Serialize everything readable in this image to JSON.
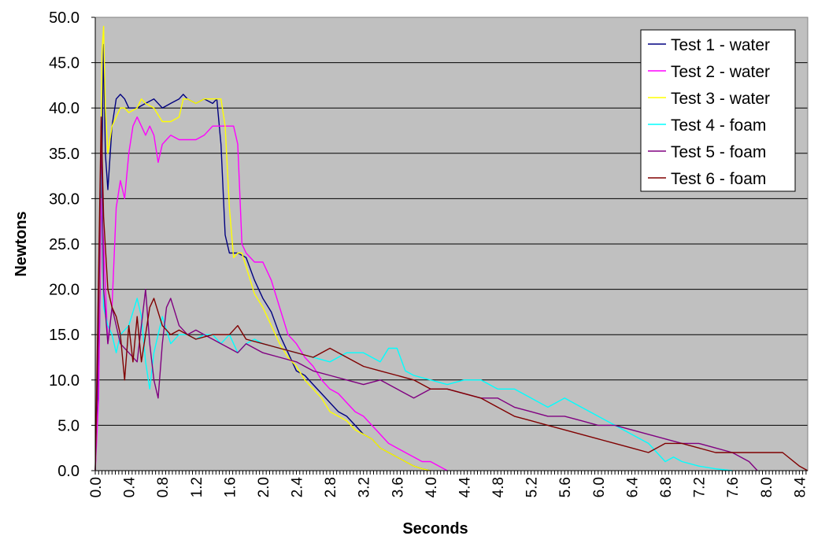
{
  "chart_data": {
    "type": "line",
    "title": "",
    "xlabel": "Seconds",
    "ylabel": "Newtons",
    "xlim": [
      0,
      8.5
    ],
    "ylim": [
      0,
      50
    ],
    "x_ticks": [
      "0.0",
      "0.4",
      "0.8",
      "1.2",
      "1.6",
      "2.0",
      "2.4",
      "2.8",
      "3.2",
      "3.6",
      "4.0",
      "4.4",
      "4.8",
      "5.2",
      "5.6",
      "6.0",
      "6.4",
      "6.8",
      "7.2",
      "7.6",
      "8.0",
      "8.4"
    ],
    "y_ticks": [
      "0.0",
      "5.0",
      "10.0",
      "15.0",
      "20.0",
      "25.0",
      "30.0",
      "35.0",
      "40.0",
      "45.0",
      "50.0"
    ],
    "grid": "horizontal",
    "plot_background": "#c0c0c0",
    "legend_position": "top-right",
    "series": [
      {
        "name": "Test 1 - water",
        "color": "#000080",
        "x": [
          0,
          0.05,
          0.1,
          0.12,
          0.15,
          0.2,
          0.25,
          0.3,
          0.35,
          0.4,
          0.5,
          0.6,
          0.7,
          0.8,
          0.9,
          1.0,
          1.05,
          1.1,
          1.2,
          1.3,
          1.4,
          1.45,
          1.5,
          1.55,
          1.6,
          1.65,
          1.7,
          1.8,
          1.9,
          2.0,
          2.1,
          2.2,
          2.3,
          2.4,
          2.5,
          2.6,
          2.7,
          2.8,
          2.9,
          3.0,
          3.1,
          3.2,
          3.3,
          3.4,
          3.5,
          3.6,
          3.7,
          3.8,
          3.9,
          4.0
        ],
        "y": [
          0,
          15,
          47,
          35,
          31,
          38,
          41,
          41.5,
          41,
          40,
          40,
          40.5,
          41,
          40,
          40.5,
          41,
          41.5,
          41,
          40.5,
          41,
          40.5,
          41,
          36,
          26,
          24,
          24,
          24,
          23.5,
          21,
          19,
          17.5,
          15,
          13,
          11,
          10.5,
          9.5,
          8.5,
          7.5,
          6.5,
          6,
          5,
          4,
          3.5,
          2.5,
          2,
          1.5,
          1,
          0.5,
          0.2,
          0
        ]
      },
      {
        "name": "Test 2 - water",
        "color": "#ff00ff",
        "x": [
          0,
          0.04,
          0.07,
          0.1,
          0.15,
          0.2,
          0.25,
          0.3,
          0.35,
          0.4,
          0.45,
          0.5,
          0.55,
          0.6,
          0.65,
          0.7,
          0.75,
          0.8,
          0.85,
          0.9,
          1.0,
          1.1,
          1.2,
          1.3,
          1.4,
          1.5,
          1.6,
          1.65,
          1.7,
          1.75,
          1.8,
          1.9,
          2.0,
          2.1,
          2.2,
          2.3,
          2.4,
          2.5,
          2.6,
          2.7,
          2.8,
          2.9,
          3.0,
          3.1,
          3.2,
          3.3,
          3.4,
          3.5,
          3.6,
          3.7,
          3.8,
          3.9,
          4.0,
          4.1,
          4.2
        ],
        "y": [
          0,
          8,
          30,
          25,
          14,
          18,
          29,
          32,
          30,
          35,
          38,
          39,
          38,
          37,
          38,
          37,
          34,
          36,
          36.5,
          37,
          36.5,
          36.5,
          36.5,
          37,
          38,
          38,
          38,
          38,
          36,
          25,
          24,
          23,
          23,
          21,
          18,
          15,
          14,
          12.5,
          11.5,
          10,
          9,
          8.5,
          7.5,
          6.5,
          6,
          5,
          4,
          3,
          2.5,
          2,
          1.5,
          1,
          1,
          0.5,
          0
        ]
      },
      {
        "name": "Test 3 - water",
        "color": "#ffff00",
        "x": [
          0,
          0.05,
          0.08,
          0.1,
          0.12,
          0.15,
          0.2,
          0.25,
          0.3,
          0.35,
          0.4,
          0.5,
          0.55,
          0.6,
          0.7,
          0.8,
          0.9,
          1.0,
          1.05,
          1.1,
          1.2,
          1.3,
          1.4,
          1.5,
          1.55,
          1.6,
          1.65,
          1.7,
          1.75,
          1.8,
          1.9,
          2.0,
          2.1,
          2.2,
          2.3,
          2.4,
          2.5,
          2.6,
          2.7,
          2.8,
          2.9,
          3.0,
          3.1,
          3.2,
          3.3,
          3.4,
          3.5,
          3.6,
          3.7,
          3.8,
          3.9,
          4.0
        ],
        "y": [
          0,
          20,
          46,
          49,
          40,
          35,
          38,
          39,
          40,
          40,
          39.5,
          40,
          41,
          40.5,
          40,
          38.5,
          38.5,
          39,
          41,
          41,
          40.5,
          41,
          41,
          41,
          38,
          29,
          23.5,
          24,
          24,
          22.5,
          19.5,
          18,
          16,
          14,
          12.5,
          11.5,
          10,
          9,
          8,
          6.5,
          6,
          5.5,
          4.5,
          4,
          3.5,
          2.5,
          2,
          1.5,
          1,
          0.5,
          0.2,
          0
        ]
      },
      {
        "name": "Test 4 - foam",
        "color": "#00ffff",
        "x": [
          0,
          0.04,
          0.07,
          0.1,
          0.15,
          0.2,
          0.25,
          0.3,
          0.4,
          0.5,
          0.55,
          0.6,
          0.65,
          0.7,
          0.8,
          0.9,
          1.0,
          1.1,
          1.2,
          1.3,
          1.4,
          1.5,
          1.6,
          1.7,
          1.8,
          1.9,
          2.0,
          2.2,
          2.4,
          2.6,
          2.8,
          3.0,
          3.2,
          3.4,
          3.5,
          3.6,
          3.7,
          3.8,
          4.0,
          4.2,
          4.4,
          4.6,
          4.8,
          5.0,
          5.2,
          5.4,
          5.6,
          5.8,
          6.0,
          6.2,
          6.4,
          6.6,
          6.7,
          6.8,
          6.9,
          7.0,
          7.2,
          7.4,
          7.6
        ],
        "y": [
          0,
          20,
          36,
          18,
          16,
          15,
          13,
          15,
          16,
          19,
          17,
          12,
          9,
          13,
          17,
          14,
          15,
          15,
          14.5,
          15,
          15,
          14,
          15,
          13,
          14,
          14.5,
          14,
          13.5,
          13,
          12.5,
          12,
          13,
          13,
          12,
          13.5,
          13.5,
          11,
          10.5,
          10,
          9.5,
          10,
          10,
          9,
          9,
          8,
          7,
          8,
          7,
          6,
          5,
          4,
          3,
          2,
          1,
          1.5,
          1,
          0.5,
          0.2,
          0
        ]
      },
      {
        "name": "Test 5 - foam",
        "color": "#800080",
        "x": [
          0,
          0.04,
          0.07,
          0.1,
          0.15,
          0.2,
          0.3,
          0.4,
          0.5,
          0.55,
          0.6,
          0.65,
          0.7,
          0.75,
          0.8,
          0.85,
          0.9,
          1.0,
          1.1,
          1.2,
          1.3,
          1.4,
          1.5,
          1.6,
          1.7,
          1.8,
          2.0,
          2.2,
          2.4,
          2.6,
          2.8,
          3.0,
          3.2,
          3.4,
          3.6,
          3.8,
          4.0,
          4.2,
          4.4,
          4.6,
          4.8,
          5.0,
          5.2,
          5.4,
          5.6,
          5.8,
          6.0,
          6.2,
          6.4,
          6.6,
          6.8,
          7.0,
          7.2,
          7.4,
          7.6,
          7.8,
          7.9
        ],
        "y": [
          0,
          15,
          38,
          20,
          14,
          18,
          14,
          13,
          12,
          16,
          20,
          14,
          10,
          8,
          14,
          18,
          19,
          16,
          15,
          15.5,
          15,
          14.5,
          14,
          13.5,
          13,
          14,
          13,
          12.5,
          12,
          11,
          10.5,
          10,
          9.5,
          10,
          9,
          8,
          9,
          9,
          8.5,
          8,
          8,
          7,
          6.5,
          6,
          6,
          5.5,
          5,
          5,
          4.5,
          4,
          3.5,
          3,
          3,
          2.5,
          2,
          1,
          0
        ]
      },
      {
        "name": "Test 6 - foam",
        "color": "#800000",
        "x": [
          0,
          0.04,
          0.07,
          0.1,
          0.15,
          0.2,
          0.25,
          0.3,
          0.35,
          0.4,
          0.45,
          0.5,
          0.55,
          0.6,
          0.65,
          0.7,
          0.8,
          0.9,
          1.0,
          1.1,
          1.2,
          1.4,
          1.6,
          1.7,
          1.8,
          2.0,
          2.2,
          2.4,
          2.6,
          2.8,
          3.0,
          3.2,
          3.4,
          3.6,
          3.8,
          4.0,
          4.2,
          4.4,
          4.6,
          4.8,
          5.0,
          5.2,
          5.4,
          5.6,
          5.8,
          6.0,
          6.2,
          6.4,
          6.6,
          6.8,
          7.0,
          7.2,
          7.4,
          7.6,
          7.8,
          8.0,
          8.2,
          8.4,
          8.5
        ],
        "y": [
          0,
          22,
          39,
          28,
          20,
          18,
          17,
          15,
          10,
          16,
          12,
          17,
          12,
          15,
          18,
          19,
          16,
          15,
          15.5,
          15,
          14.5,
          15,
          15,
          16,
          14.5,
          14,
          13.5,
          13,
          12.5,
          13.5,
          12.5,
          11.5,
          11,
          10.5,
          10,
          9,
          9,
          8.5,
          8,
          7,
          6,
          5.5,
          5,
          4.5,
          4,
          3.5,
          3,
          2.5,
          2,
          3,
          3,
          2.5,
          2,
          2,
          2,
          2,
          2,
          0.5,
          0
        ]
      }
    ]
  }
}
